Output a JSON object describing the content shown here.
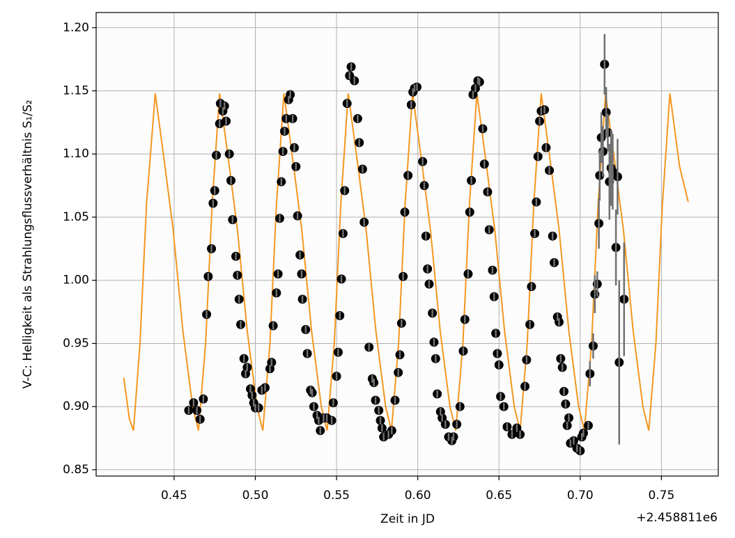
{
  "chart_data": {
    "type": "errorbar-model",
    "xlabel": "Zeit in JD",
    "ylabel": "V-C: Helligkeit als Strahlungsflussverhältnis S₁/S₂",
    "offset_label": "+2.458811e6",
    "xlim": [
      0.402,
      0.785
    ],
    "ylim": [
      0.845,
      1.212
    ],
    "xticks": [
      {
        "value": 0.45,
        "label": "0.45"
      },
      {
        "value": 0.5,
        "label": "0.50"
      },
      {
        "value": 0.55,
        "label": "0.55"
      },
      {
        "value": 0.6,
        "label": "0.60"
      },
      {
        "value": 0.65,
        "label": "0.65"
      },
      {
        "value": 0.7,
        "label": "0.70"
      },
      {
        "value": 0.75,
        "label": "0.75"
      }
    ],
    "yticks": [
      {
        "value": 0.85,
        "label": "0.85"
      },
      {
        "value": 0.9,
        "label": "0.90"
      },
      {
        "value": 0.95,
        "label": "0.95"
      },
      {
        "value": 1.0,
        "label": "1.00"
      },
      {
        "value": 1.05,
        "label": "1.05"
      },
      {
        "value": 1.1,
        "label": "1.10"
      },
      {
        "value": 1.15,
        "label": "1.15"
      },
      {
        "value": 1.2,
        "label": "1.20"
      }
    ],
    "grid": true,
    "points": {
      "color": "#000000",
      "ecolor": "#707070",
      "x": [
        0.459,
        0.462,
        0.464,
        0.466,
        0.468,
        0.47,
        0.471,
        0.473,
        0.474,
        0.475,
        0.476,
        0.478,
        0.4785,
        0.48,
        0.481,
        0.482,
        0.484,
        0.485,
        0.486,
        0.488,
        0.489,
        0.49,
        0.491,
        0.493,
        0.494,
        0.495,
        0.497,
        0.498,
        0.499,
        0.5,
        0.502,
        0.504,
        0.506,
        0.509,
        0.51,
        0.511,
        0.513,
        0.514,
        0.515,
        0.516,
        0.517,
        0.518,
        0.519,
        0.5205,
        0.5215,
        0.523,
        0.524,
        0.525,
        0.526,
        0.5275,
        0.5285,
        0.529,
        0.531,
        0.532,
        0.534,
        0.535,
        0.536,
        0.538,
        0.539,
        0.54,
        0.542,
        0.544,
        0.547,
        0.548,
        0.55,
        0.551,
        0.552,
        0.553,
        0.554,
        0.555,
        0.5565,
        0.558,
        0.559,
        0.561,
        0.563,
        0.564,
        0.566,
        0.567,
        0.57,
        0.572,
        0.573,
        0.574,
        0.576,
        0.577,
        0.578,
        0.579,
        0.582,
        0.584,
        0.586,
        0.588,
        0.589,
        0.59,
        0.591,
        0.592,
        0.594,
        0.596,
        0.597,
        0.598,
        0.5995,
        0.603,
        0.604,
        0.605,
        0.606,
        0.607,
        0.609,
        0.61,
        0.611,
        0.612,
        0.614,
        0.615,
        0.617,
        0.619,
        0.621,
        0.622,
        0.624,
        0.626,
        0.628,
        0.629,
        0.631,
        0.632,
        0.633,
        0.634,
        0.6355,
        0.637,
        0.638,
        0.64,
        0.641,
        0.643,
        0.644,
        0.646,
        0.647,
        0.648,
        0.649,
        0.65,
        0.651,
        0.653,
        0.655,
        0.658,
        0.661,
        0.663,
        0.666,
        0.667,
        0.669,
        0.67,
        0.672,
        0.673,
        0.674,
        0.675,
        0.676,
        0.678,
        0.679,
        0.681,
        0.683,
        0.684,
        0.686,
        0.687,
        0.688,
        0.689,
        0.69,
        0.691,
        0.692,
        0.693,
        0.694,
        0.696,
        0.698,
        0.7,
        0.701,
        0.702,
        0.705,
        0.706,
        0.708,
        0.709,
        0.7105,
        0.7115,
        0.712,
        0.713,
        0.714,
        0.715,
        0.716,
        0.717,
        0.718,
        0.719,
        0.72,
        0.722,
        0.723,
        0.724,
        0.727
      ],
      "y": [
        0.897,
        0.903,
        0.897,
        0.89,
        0.906,
        0.973,
        1.003,
        1.025,
        1.061,
        1.071,
        1.099,
        1.124,
        1.14,
        1.134,
        1.138,
        1.126,
        1.1,
        1.079,
        1.048,
        1.019,
        1.004,
        0.985,
        0.965,
        0.938,
        0.926,
        0.931,
        0.914,
        0.909,
        0.903,
        0.899,
        0.899,
        0.913,
        0.915,
        0.93,
        0.935,
        0.964,
        0.99,
        1.005,
        1.049,
        1.078,
        1.102,
        1.118,
        1.128,
        1.143,
        1.147,
        1.128,
        1.105,
        1.09,
        1.051,
        1.02,
        1.005,
        0.985,
        0.961,
        0.942,
        0.913,
        0.911,
        0.9,
        0.893,
        0.889,
        0.881,
        0.891,
        0.891,
        0.889,
        0.903,
        0.924,
        0.943,
        0.972,
        1.001,
        1.037,
        1.071,
        1.14,
        1.162,
        1.169,
        1.158,
        1.128,
        1.109,
        1.088,
        1.046,
        0.947,
        0.922,
        0.919,
        0.905,
        0.897,
        0.889,
        0.883,
        0.876,
        0.878,
        0.881,
        0.905,
        0.927,
        0.941,
        0.966,
        1.003,
        1.054,
        1.083,
        1.139,
        1.149,
        1.152,
        1.153,
        1.094,
        1.075,
        1.035,
        1.009,
        0.997,
        0.974,
        0.951,
        0.938,
        0.91,
        0.896,
        0.891,
        0.886,
        0.876,
        0.873,
        0.876,
        0.886,
        0.9,
        0.944,
        0.969,
        1.005,
        1.054,
        1.079,
        1.147,
        1.152,
        1.158,
        1.157,
        1.12,
        1.092,
        1.07,
        1.04,
        1.008,
        0.987,
        0.958,
        0.942,
        0.933,
        0.908,
        0.9,
        0.884,
        0.878,
        0.883,
        0.878,
        0.916,
        0.937,
        0.965,
        0.995,
        1.037,
        1.062,
        1.098,
        1.126,
        1.134,
        1.135,
        1.105,
        1.087,
        1.035,
        1.014,
        0.971,
        0.967,
        0.938,
        0.931,
        0.912,
        0.902,
        0.885,
        0.891,
        0.871,
        0.873,
        0.867,
        0.865,
        0.876,
        0.879,
        0.885,
        0.926,
        0.948,
        0.989,
        0.997,
        1.045,
        1.083,
        1.113,
        1.102,
        1.171,
        1.133,
        1.117,
        1.078,
        1.089,
        1.086,
        1.026,
        1.082,
        0.935,
        0.985
      ],
      "yerr": [
        0.003,
        0.003,
        0.003,
        0.003,
        0.003,
        0.003,
        0.003,
        0.003,
        0.003,
        0.003,
        0.003,
        0.003,
        0.003,
        0.003,
        0.003,
        0.003,
        0.003,
        0.003,
        0.003,
        0.003,
        0.003,
        0.003,
        0.003,
        0.003,
        0.003,
        0.003,
        0.003,
        0.003,
        0.003,
        0.003,
        0.003,
        0.003,
        0.003,
        0.003,
        0.003,
        0.003,
        0.003,
        0.003,
        0.003,
        0.003,
        0.003,
        0.003,
        0.003,
        0.003,
        0.003,
        0.003,
        0.003,
        0.003,
        0.003,
        0.003,
        0.003,
        0.003,
        0.003,
        0.003,
        0.003,
        0.003,
        0.003,
        0.003,
        0.003,
        0.003,
        0.003,
        0.003,
        0.003,
        0.003,
        0.003,
        0.003,
        0.003,
        0.003,
        0.003,
        0.003,
        0.003,
        0.003,
        0.003,
        0.003,
        0.003,
        0.003,
        0.003,
        0.003,
        0.003,
        0.003,
        0.003,
        0.003,
        0.003,
        0.003,
        0.003,
        0.003,
        0.003,
        0.003,
        0.003,
        0.003,
        0.003,
        0.003,
        0.003,
        0.003,
        0.003,
        0.003,
        0.003,
        0.003,
        0.003,
        0.003,
        0.003,
        0.003,
        0.003,
        0.003,
        0.003,
        0.003,
        0.003,
        0.003,
        0.003,
        0.003,
        0.003,
        0.003,
        0.003,
        0.003,
        0.003,
        0.003,
        0.003,
        0.003,
        0.003,
        0.003,
        0.003,
        0.003,
        0.003,
        0.003,
        0.003,
        0.003,
        0.003,
        0.003,
        0.003,
        0.003,
        0.003,
        0.003,
        0.003,
        0.003,
        0.003,
        0.003,
        0.003,
        0.003,
        0.003,
        0.003,
        0.003,
        0.003,
        0.003,
        0.003,
        0.003,
        0.003,
        0.003,
        0.003,
        0.003,
        0.003,
        0.003,
        0.003,
        0.003,
        0.003,
        0.003,
        0.003,
        0.003,
        0.003,
        0.003,
        0.003,
        0.003,
        0.003,
        0.003,
        0.003,
        0.003,
        0.003,
        0.003,
        0.003,
        0.003,
        0.01,
        0.01,
        0.015,
        0.01,
        0.02,
        0.02,
        0.02,
        0.02,
        0.024,
        0.02,
        0.015,
        0.03,
        0.03,
        0.03,
        0.03,
        0.03,
        0.065,
        0.045
      ]
    },
    "model": {
      "color": "#f5961e",
      "x": [
        0.419,
        0.4225,
        0.425,
        0.429,
        0.433,
        0.4384,
        0.4444,
        0.4494,
        0.4554,
        0.4614,
        0.465,
        0.4694,
        0.4734,
        0.478,
        0.484,
        0.489,
        0.495,
        0.501,
        0.5046,
        0.509,
        0.513,
        0.5176,
        0.5236,
        0.5286,
        0.5346,
        0.5406,
        0.5442,
        0.5486,
        0.5526,
        0.5572,
        0.5632,
        0.5682,
        0.5742,
        0.5802,
        0.5838,
        0.5882,
        0.5922,
        0.5968,
        0.6028,
        0.6078,
        0.6138,
        0.6198,
        0.6234,
        0.6278,
        0.6318,
        0.6364,
        0.6424,
        0.6474,
        0.6534,
        0.6594,
        0.663,
        0.6674,
        0.6714,
        0.676,
        0.682,
        0.687,
        0.693,
        0.699,
        0.7026,
        0.707,
        0.711,
        0.7156,
        0.7216,
        0.7266,
        0.7326,
        0.7386,
        0.7422,
        0.7466,
        0.7506,
        0.7552,
        0.7612,
        0.7665
      ],
      "y": [
        0.923,
        0.89,
        0.881,
        0.95,
        1.06,
        1.148,
        1.09,
        1.04,
        0.96,
        0.9,
        0.881,
        0.95,
        1.06,
        1.148,
        1.09,
        1.04,
        0.96,
        0.9,
        0.881,
        0.95,
        1.06,
        1.148,
        1.09,
        1.04,
        0.96,
        0.9,
        0.881,
        0.95,
        1.06,
        1.148,
        1.09,
        1.04,
        0.96,
        0.9,
        0.881,
        0.95,
        1.06,
        1.148,
        1.09,
        1.04,
        0.96,
        0.9,
        0.881,
        0.95,
        1.06,
        1.148,
        1.09,
        1.04,
        0.96,
        0.9,
        0.881,
        0.95,
        1.06,
        1.148,
        1.09,
        1.04,
        0.96,
        0.9,
        0.881,
        0.95,
        1.06,
        1.148,
        1.09,
        1.04,
        0.96,
        0.9,
        0.881,
        0.95,
        1.06,
        1.148,
        1.09,
        1.062
      ]
    }
  }
}
